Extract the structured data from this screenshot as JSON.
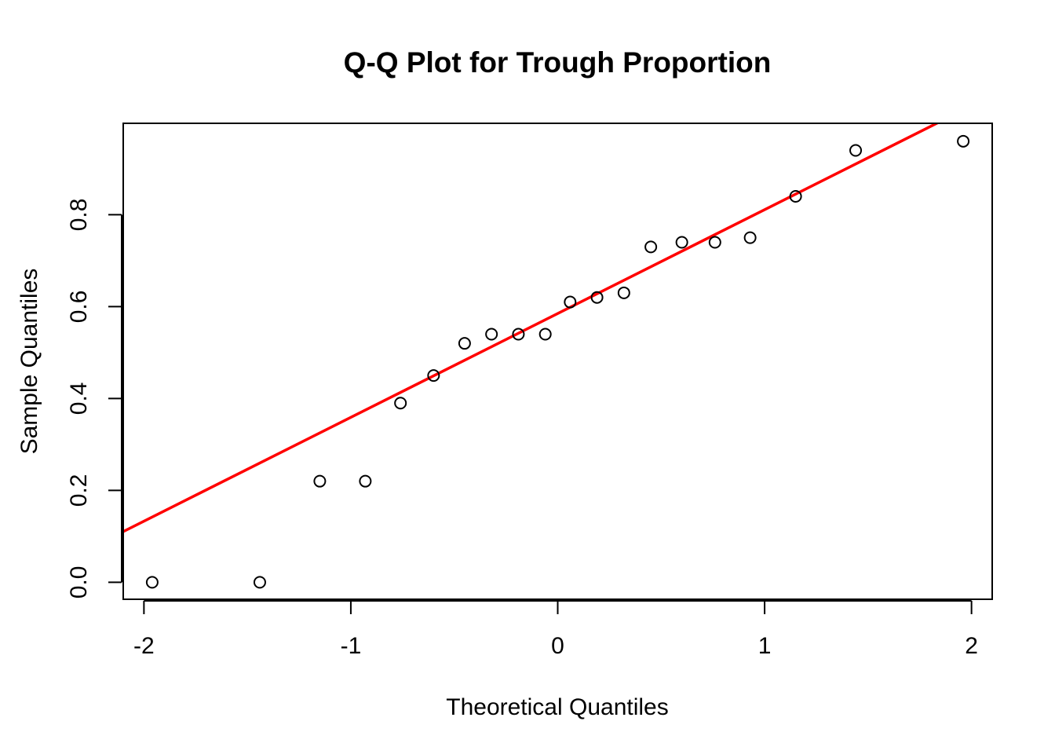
{
  "chart_data": {
    "type": "scatter",
    "title": "Q-Q Plot for Trough Proportion",
    "xlabel": "Theoretical Quantiles",
    "ylabel": "Sample Quantiles",
    "xlim": [
      -2.1,
      2.1
    ],
    "ylim": [
      -0.037,
      0.999
    ],
    "xticks": [
      -2,
      -1,
      0,
      1,
      2
    ],
    "xtick_labels": [
      "-2",
      "-1",
      "0",
      "1",
      "2"
    ],
    "yticks": [
      0.0,
      0.2,
      0.4,
      0.6,
      0.8
    ],
    "ytick_labels": [
      "0.0",
      "0.2",
      "0.4",
      "0.6",
      "0.8"
    ],
    "grid": false,
    "points": [
      {
        "x": -1.96,
        "y": 0.0
      },
      {
        "x": -1.44,
        "y": 0.0
      },
      {
        "x": -1.15,
        "y": 0.22
      },
      {
        "x": -0.93,
        "y": 0.22
      },
      {
        "x": -0.76,
        "y": 0.39
      },
      {
        "x": -0.6,
        "y": 0.45
      },
      {
        "x": -0.45,
        "y": 0.52
      },
      {
        "x": -0.32,
        "y": 0.54
      },
      {
        "x": -0.19,
        "y": 0.54
      },
      {
        "x": -0.06,
        "y": 0.54
      },
      {
        "x": 0.06,
        "y": 0.61
      },
      {
        "x": 0.19,
        "y": 0.62
      },
      {
        "x": 0.32,
        "y": 0.63
      },
      {
        "x": 0.45,
        "y": 0.73
      },
      {
        "x": 0.6,
        "y": 0.74
      },
      {
        "x": 0.76,
        "y": 0.74
      },
      {
        "x": 0.93,
        "y": 0.75
      },
      {
        "x": 1.15,
        "y": 0.84
      },
      {
        "x": 1.44,
        "y": 0.94
      },
      {
        "x": 1.96,
        "y": 0.96
      }
    ],
    "reference_line": {
      "intercept": 0.585,
      "slope": 0.226,
      "color": "#ff0000"
    },
    "point_color": "#000000"
  }
}
